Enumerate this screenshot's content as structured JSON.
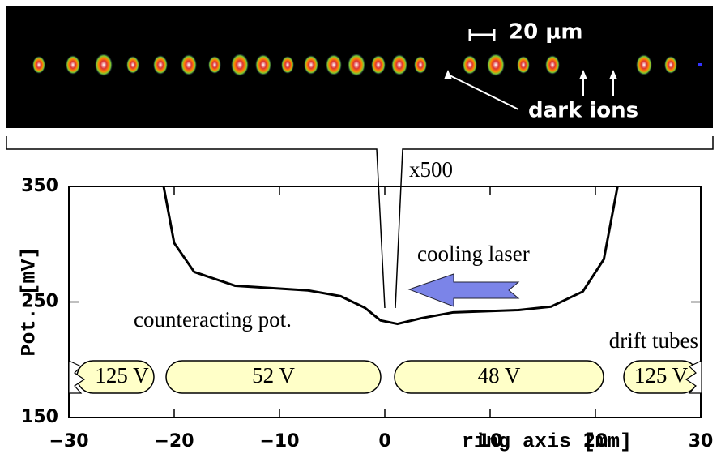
{
  "chart_data": {
    "type": "line",
    "xlabel": "ring axis [mm]",
    "ylabel": "Pot. [mV]",
    "xlim": [
      -30,
      30
    ],
    "ylim": [
      150,
      350
    ],
    "xticks": [
      {
        "value": -30,
        "label": "−30"
      },
      {
        "value": -20,
        "label": "−20"
      },
      {
        "value": -10,
        "label": "−10"
      },
      0,
      10,
      20,
      30
    ],
    "yticks": [
      150,
      250,
      350
    ],
    "series": [
      {
        "color": "#000000",
        "x": [
          -21,
          -20,
          -18.1,
          -14.2,
          -7.3,
          -4.2,
          -1.9,
          -0.4,
          1.2,
          3.5,
          6.5,
          12.7,
          15.8,
          18.8,
          20.8,
          22.1
        ],
        "values": [
          350,
          301,
          276,
          264,
          260,
          255,
          245,
          234,
          231,
          236,
          241,
          243,
          246,
          259,
          287,
          350
        ]
      }
    ],
    "annotations": [
      "x500",
      "cooling laser",
      "counteracting pot.",
      "drift tubes",
      "20 µm",
      "dark ions"
    ],
    "electrode_labels": [
      "125 V",
      "52 V",
      "48 V",
      "125 V"
    ]
  }
}
